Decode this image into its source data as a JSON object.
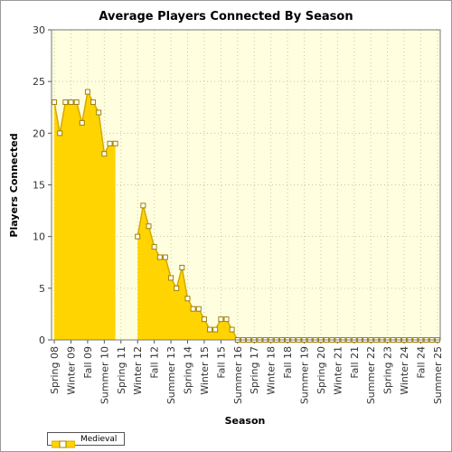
{
  "chart_data": {
    "type": "area",
    "title": "Average Players Connected By Season",
    "xlabel": "Season",
    "ylabel": "Players Connected",
    "ylim": [
      0,
      30
    ],
    "yticks": [
      0,
      5,
      10,
      15,
      20,
      25,
      30
    ],
    "grid": true,
    "legend_position": "bottom-left",
    "colors": {
      "fill": "#ffd400",
      "line": "#d6a800",
      "plot_bg": "#ffffe0",
      "grid": "#c8c8a8",
      "marker_fill": "#ffffff",
      "marker_stroke": "#a08000"
    },
    "categories": [
      "Spring 08",
      "Summer 08",
      "Fall 08",
      "Winter 09",
      "Spring 09",
      "Summer 09",
      "Fall 09",
      "Winter 10",
      "Spring 10",
      "Summer 10",
      "Fall 10",
      "Winter 11",
      "Spring 11",
      "Summer 11",
      "Fall 11",
      "Winter 12",
      "Spring 12",
      "Summer 12",
      "Fall 12",
      "Winter 13",
      "Spring 13",
      "Summer 13",
      "Fall 13",
      "Winter 14",
      "Spring 14",
      "Summer 14",
      "Fall 14",
      "Winter 15",
      "Spring 15",
      "Summer 15",
      "Fall 15",
      "Winter 16",
      "Spring 16",
      "Summer 16",
      "Fall 16",
      "Winter 17",
      "Spring 17",
      "Summer 17",
      "Fall 17",
      "Winter 18",
      "Spring 18",
      "Summer 18",
      "Fall 18",
      "Winter 19",
      "Spring 19",
      "Summer 19",
      "Fall 19",
      "Winter 20",
      "Spring 20",
      "Summer 20",
      "Fall 20",
      "Winter 21",
      "Spring 21",
      "Summer 21",
      "Fall 21",
      "Winter 22",
      "Spring 22",
      "Summer 22",
      "Fall 22",
      "Winter 23",
      "Spring 23",
      "Summer 23",
      "Fall 23",
      "Winter 24",
      "Spring 24",
      "Summer 24",
      "Fall 24",
      "Winter 25",
      "Spring 25",
      "Summer 25"
    ],
    "tick_labels": [
      "Spring 08",
      "Winter 09",
      "Fall 09",
      "Summer 10",
      "Spring 11",
      "Winter 12",
      "Fall 12",
      "Summer 13",
      "Spring 14",
      "Winter 15",
      "Fall 15",
      "Summer 16",
      "Spring 17",
      "Winter 18",
      "Fall 18",
      "Summer 19",
      "Spring 20",
      "Winter 21",
      "Fall 21",
      "Summer 22",
      "Spring 23",
      "Winter 24",
      "Fall 24",
      "Summer 25"
    ],
    "series": [
      {
        "name": "Medieval",
        "values": [
          23,
          20,
          23,
          23,
          23,
          21,
          24,
          23,
          22,
          18,
          19,
          19,
          null,
          null,
          null,
          10,
          13,
          11,
          9,
          8,
          8,
          6,
          5,
          7,
          4,
          3,
          3,
          2,
          1,
          1,
          2,
          2,
          1,
          0,
          0,
          0,
          0,
          0,
          0,
          0,
          0,
          0,
          0,
          0,
          0,
          0,
          0,
          0,
          0,
          0,
          0,
          0,
          0,
          0,
          0,
          0,
          0,
          0,
          0,
          0,
          0,
          0,
          0,
          0,
          0,
          0,
          0,
          0,
          0,
          0
        ]
      }
    ]
  }
}
